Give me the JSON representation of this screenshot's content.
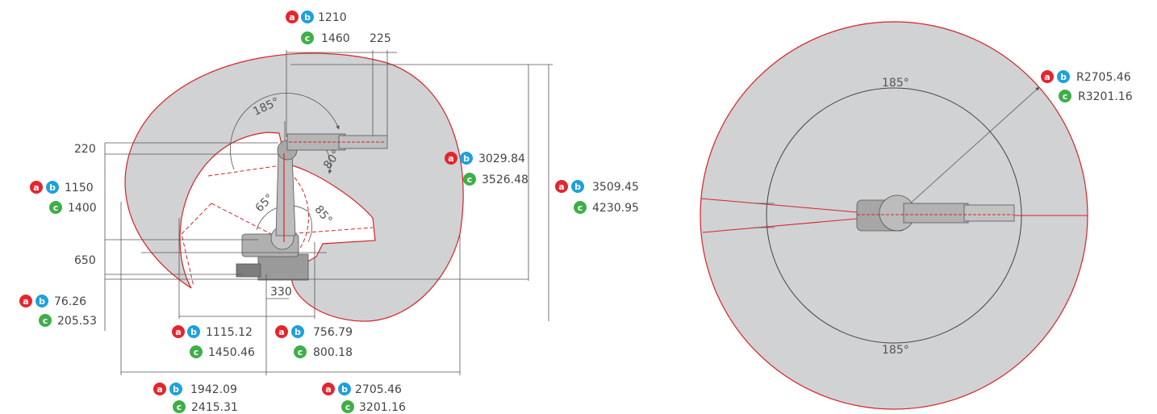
{
  "colors": {
    "envelope_fill": "#d1d2d4",
    "boundary": "#d6232a",
    "dimension_line": "#555555",
    "badge_a": "#e3262e",
    "badge_b": "#1ea0dc",
    "badge_c": "#3fae49",
    "robot": "#8a8a8a"
  },
  "badges": {
    "a": "a",
    "b": "b",
    "c": "c"
  },
  "side_view": {
    "angles": {
      "axis1": "185°",
      "axis3": "80°",
      "axis2_up": "65°",
      "axis2_down": "85°"
    },
    "top": {
      "ab": "1210",
      "c": "1460",
      "offset": "225"
    },
    "left": {
      "dim_220": "220",
      "ab": "1150",
      "c": "1400",
      "dim_650": "650",
      "lower_ab": "76.26",
      "lower_c": "205.53"
    },
    "right_inner": {
      "ab": "3029.84",
      "c": "3526.48"
    },
    "right_outer": {
      "ab": "3509.45",
      "c": "4230.95"
    },
    "bottom": {
      "dim_330": "330",
      "inner_left_ab": "1115.12",
      "inner_left_c": "1450.46",
      "inner_right_ab": "756.79",
      "inner_right_c": "800.18",
      "outer_left_ab": "1942.09",
      "outer_left_c": "2415.31",
      "outer_right_ab": "2705.46",
      "outer_right_c": "3201.16"
    }
  },
  "top_view": {
    "angle_top": "185°",
    "angle_bottom": "185°",
    "radius_ab": "R2705.46",
    "radius_c": "R3201.16"
  }
}
